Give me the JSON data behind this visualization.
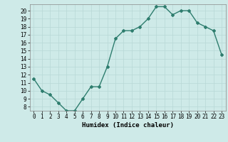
{
  "x": [
    0,
    1,
    2,
    3,
    4,
    5,
    6,
    7,
    8,
    9,
    10,
    11,
    12,
    13,
    14,
    15,
    16,
    17,
    18,
    19,
    20,
    21,
    22,
    23
  ],
  "y": [
    11.5,
    10.0,
    9.5,
    8.5,
    7.5,
    7.5,
    9.0,
    10.5,
    10.5,
    13.0,
    16.5,
    17.5,
    17.5,
    18.0,
    19.0,
    20.5,
    20.5,
    19.5,
    20.0,
    20.0,
    18.5,
    18.0,
    17.5,
    14.5
  ],
  "xlabel": "Humidex (Indice chaleur)",
  "xlim": [
    -0.5,
    23.5
  ],
  "ylim": [
    7.5,
    20.8
  ],
  "yticks": [
    8,
    9,
    10,
    11,
    12,
    13,
    14,
    15,
    16,
    17,
    18,
    19,
    20
  ],
  "xticks": [
    0,
    1,
    2,
    3,
    4,
    5,
    6,
    7,
    8,
    9,
    10,
    11,
    12,
    13,
    14,
    15,
    16,
    17,
    18,
    19,
    20,
    21,
    22,
    23
  ],
  "line_color": "#2e7d6e",
  "marker": "D",
  "marker_size": 2.0,
  "bg_color": "#ceeae8",
  "grid_color": "#b8d8d6",
  "line_width": 1.0,
  "tick_fontsize": 5.5,
  "xlabel_fontsize": 6.5
}
